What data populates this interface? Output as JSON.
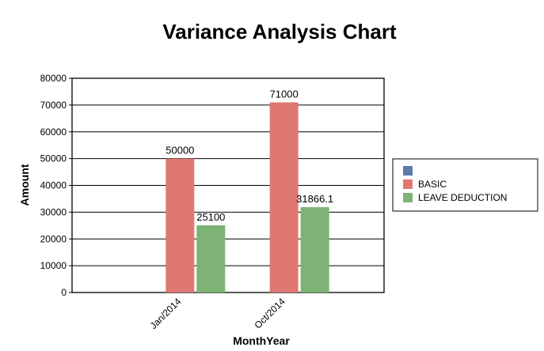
{
  "chart_data": {
    "type": "bar",
    "title": "Variance Analysis Chart",
    "xlabel": "MonthYear",
    "ylabel": "Amount",
    "categories": [
      "Jan/2014",
      "Oct/2014"
    ],
    "ylim": [
      0,
      80000
    ],
    "yticks": [
      0,
      10000,
      20000,
      30000,
      40000,
      50000,
      60000,
      70000,
      80000
    ],
    "grid": true,
    "legend_position": "right",
    "series": [
      {
        "name": "",
        "color": "#5b7bab",
        "values": [
          0,
          0
        ],
        "labels": [
          "",
          ""
        ]
      },
      {
        "name": "BASIC",
        "color": "#e07872",
        "values": [
          50000,
          71000
        ],
        "labels": [
          "50000",
          "71000"
        ]
      },
      {
        "name": "LEAVE DEDUCTION",
        "color": "#7db374",
        "values": [
          25100,
          31866.1
        ],
        "labels": [
          "25100",
          "31866.1"
        ]
      }
    ]
  }
}
